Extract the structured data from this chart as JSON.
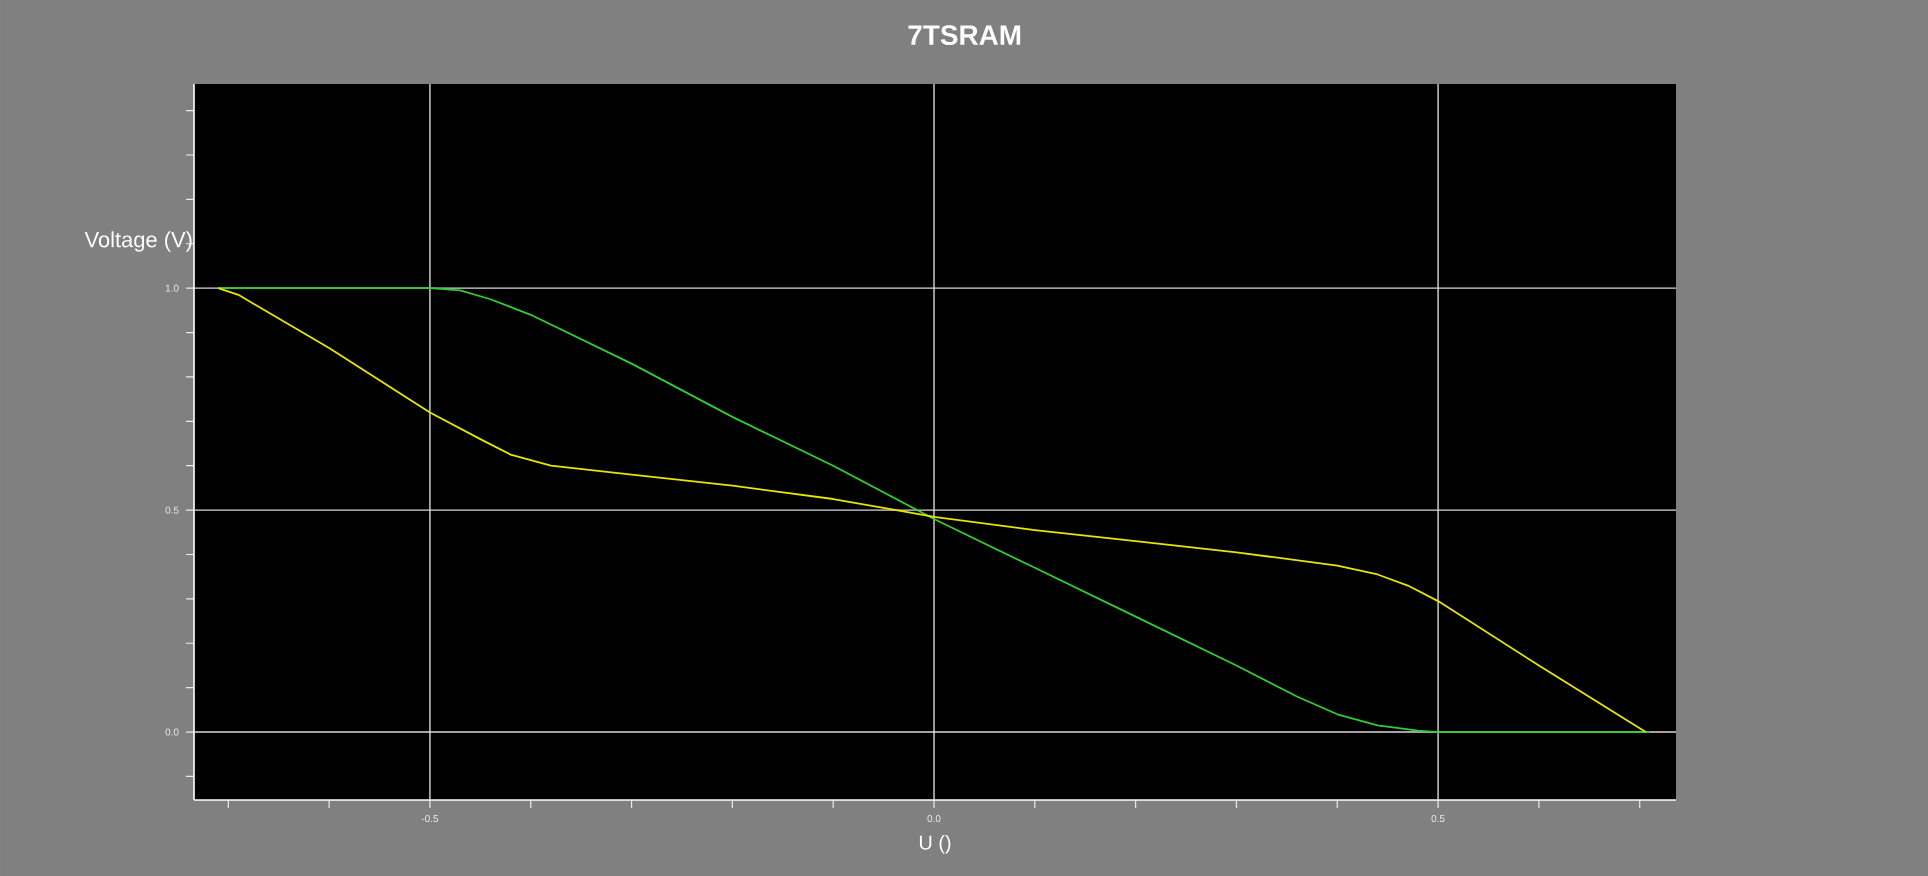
{
  "chart_data": {
    "type": "line",
    "title": "7TSRAM",
    "xlabel": "U ()",
    "ylabel": "Voltage (V)",
    "xlim": [
      -0.734,
      0.736
    ],
    "ylim": [
      -0.153,
      1.46
    ],
    "xticks": [
      {
        "value": -0.7,
        "label": null
      },
      {
        "value": -0.6,
        "label": null
      },
      {
        "value": -0.5,
        "label": "-0.5"
      },
      {
        "value": -0.4,
        "label": null
      },
      {
        "value": -0.3,
        "label": null
      },
      {
        "value": -0.2,
        "label": null
      },
      {
        "value": -0.1,
        "label": null
      },
      {
        "value": 0,
        "label": "0.0"
      },
      {
        "value": 0.1,
        "label": null
      },
      {
        "value": 0.2,
        "label": null
      },
      {
        "value": 0.3,
        "label": null
      },
      {
        "value": 0.4,
        "label": null
      },
      {
        "value": 0.5,
        "label": "0.5"
      },
      {
        "value": 0.6,
        "label": null
      },
      {
        "value": 0.7,
        "label": null
      }
    ],
    "yticks": [
      {
        "value": -0.1,
        "label": null
      },
      {
        "value": 0,
        "label": "0.0"
      },
      {
        "value": 0.1,
        "label": null
      },
      {
        "value": 0.2,
        "label": null
      },
      {
        "value": 0.3,
        "label": null
      },
      {
        "value": 0.4,
        "label": null
      },
      {
        "value": 0.5,
        "label": "0.5"
      },
      {
        "value": 0.6,
        "label": null
      },
      {
        "value": 0.7,
        "label": null
      },
      {
        "value": 0.8,
        "label": null
      },
      {
        "value": 0.9,
        "label": null
      },
      {
        "value": 1.0,
        "label": "1.0"
      },
      {
        "value": 1.1,
        "label": null
      },
      {
        "value": 1.2,
        "label": null
      },
      {
        "value": 1.3,
        "label": null
      },
      {
        "value": 1.4,
        "label": null
      }
    ],
    "grid": true,
    "series": [
      {
        "color": "#33cc33",
        "x": [
          -0.71,
          -0.6,
          -0.5,
          -0.47,
          -0.44,
          -0.4,
          -0.3,
          -0.2,
          -0.1,
          0,
          0.1,
          0.2,
          0.3,
          0.36,
          0.4,
          0.44,
          0.48,
          0.5,
          0.6,
          0.71
        ],
        "values": [
          1,
          1,
          1,
          0.995,
          0.975,
          0.94,
          0.83,
          0.71,
          0.6,
          0.48,
          0.37,
          0.26,
          0.15,
          0.08,
          0.04,
          0.015,
          0.003,
          0,
          0,
          0
        ]
      },
      {
        "color": "#e6e600",
        "x": [
          -0.71,
          -0.69,
          -0.6,
          -0.5,
          -0.45,
          -0.42,
          -0.38,
          -0.3,
          -0.2,
          -0.1,
          0,
          0.1,
          0.2,
          0.3,
          0.4,
          0.44,
          0.47,
          0.5,
          0.6,
          0.706
        ],
        "values": [
          1,
          0.985,
          0.865,
          0.72,
          0.66,
          0.625,
          0.6,
          0.58,
          0.555,
          0.525,
          0.485,
          0.455,
          0.43,
          0.405,
          0.375,
          0.355,
          0.33,
          0.295,
          0.15,
          0
        ]
      }
    ]
  }
}
